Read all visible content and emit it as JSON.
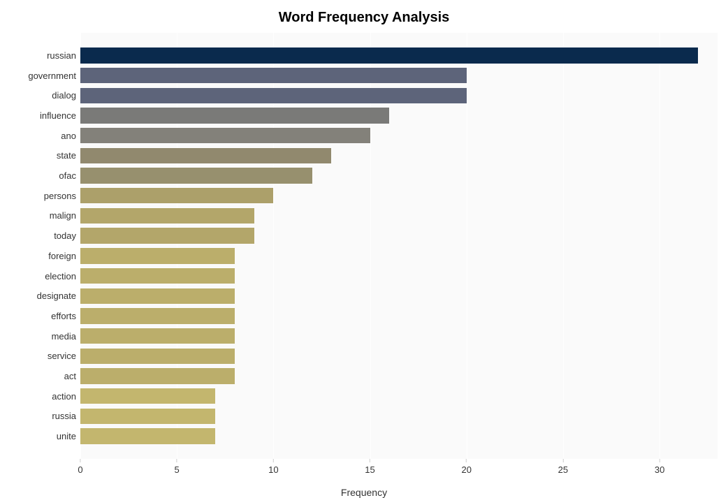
{
  "chart": {
    "type": "bar-horizontal",
    "title": "Word Frequency Analysis",
    "title_fontsize": 20,
    "title_color": "#000000",
    "background_color": "#fafafa",
    "grid_color": "#ffffff",
    "xlabel": "Frequency",
    "label_fontsize": 14,
    "label_color": "#333333",
    "tick_fontsize": 13,
    "tick_color": "#333333",
    "xlim": [
      0,
      33
    ],
    "xtick_step": 5,
    "xticks": [
      0,
      5,
      10,
      15,
      20,
      25,
      30
    ],
    "bar_height_ratio": 0.78,
    "categories": [
      "russian",
      "government",
      "dialog",
      "influence",
      "ano",
      "state",
      "ofac",
      "persons",
      "malign",
      "today",
      "foreign",
      "election",
      "designate",
      "efforts",
      "media",
      "service",
      "act",
      "action",
      "russia",
      "unite"
    ],
    "values": [
      32,
      20,
      20,
      16,
      15,
      13,
      12,
      10,
      9,
      9,
      8,
      8,
      8,
      8,
      8,
      8,
      8,
      7,
      7,
      7
    ],
    "bar_colors": [
      "#0a2a4d",
      "#5d647a",
      "#5d647a",
      "#7a7a78",
      "#83817a",
      "#91896e",
      "#97906e",
      "#aca06a",
      "#b3a66a",
      "#b3a66a",
      "#bbae6b",
      "#bbae6b",
      "#bbae6b",
      "#bbae6b",
      "#bbae6b",
      "#bbae6b",
      "#bbae6b",
      "#c3b66e",
      "#c3b66e",
      "#c3b66e"
    ]
  }
}
